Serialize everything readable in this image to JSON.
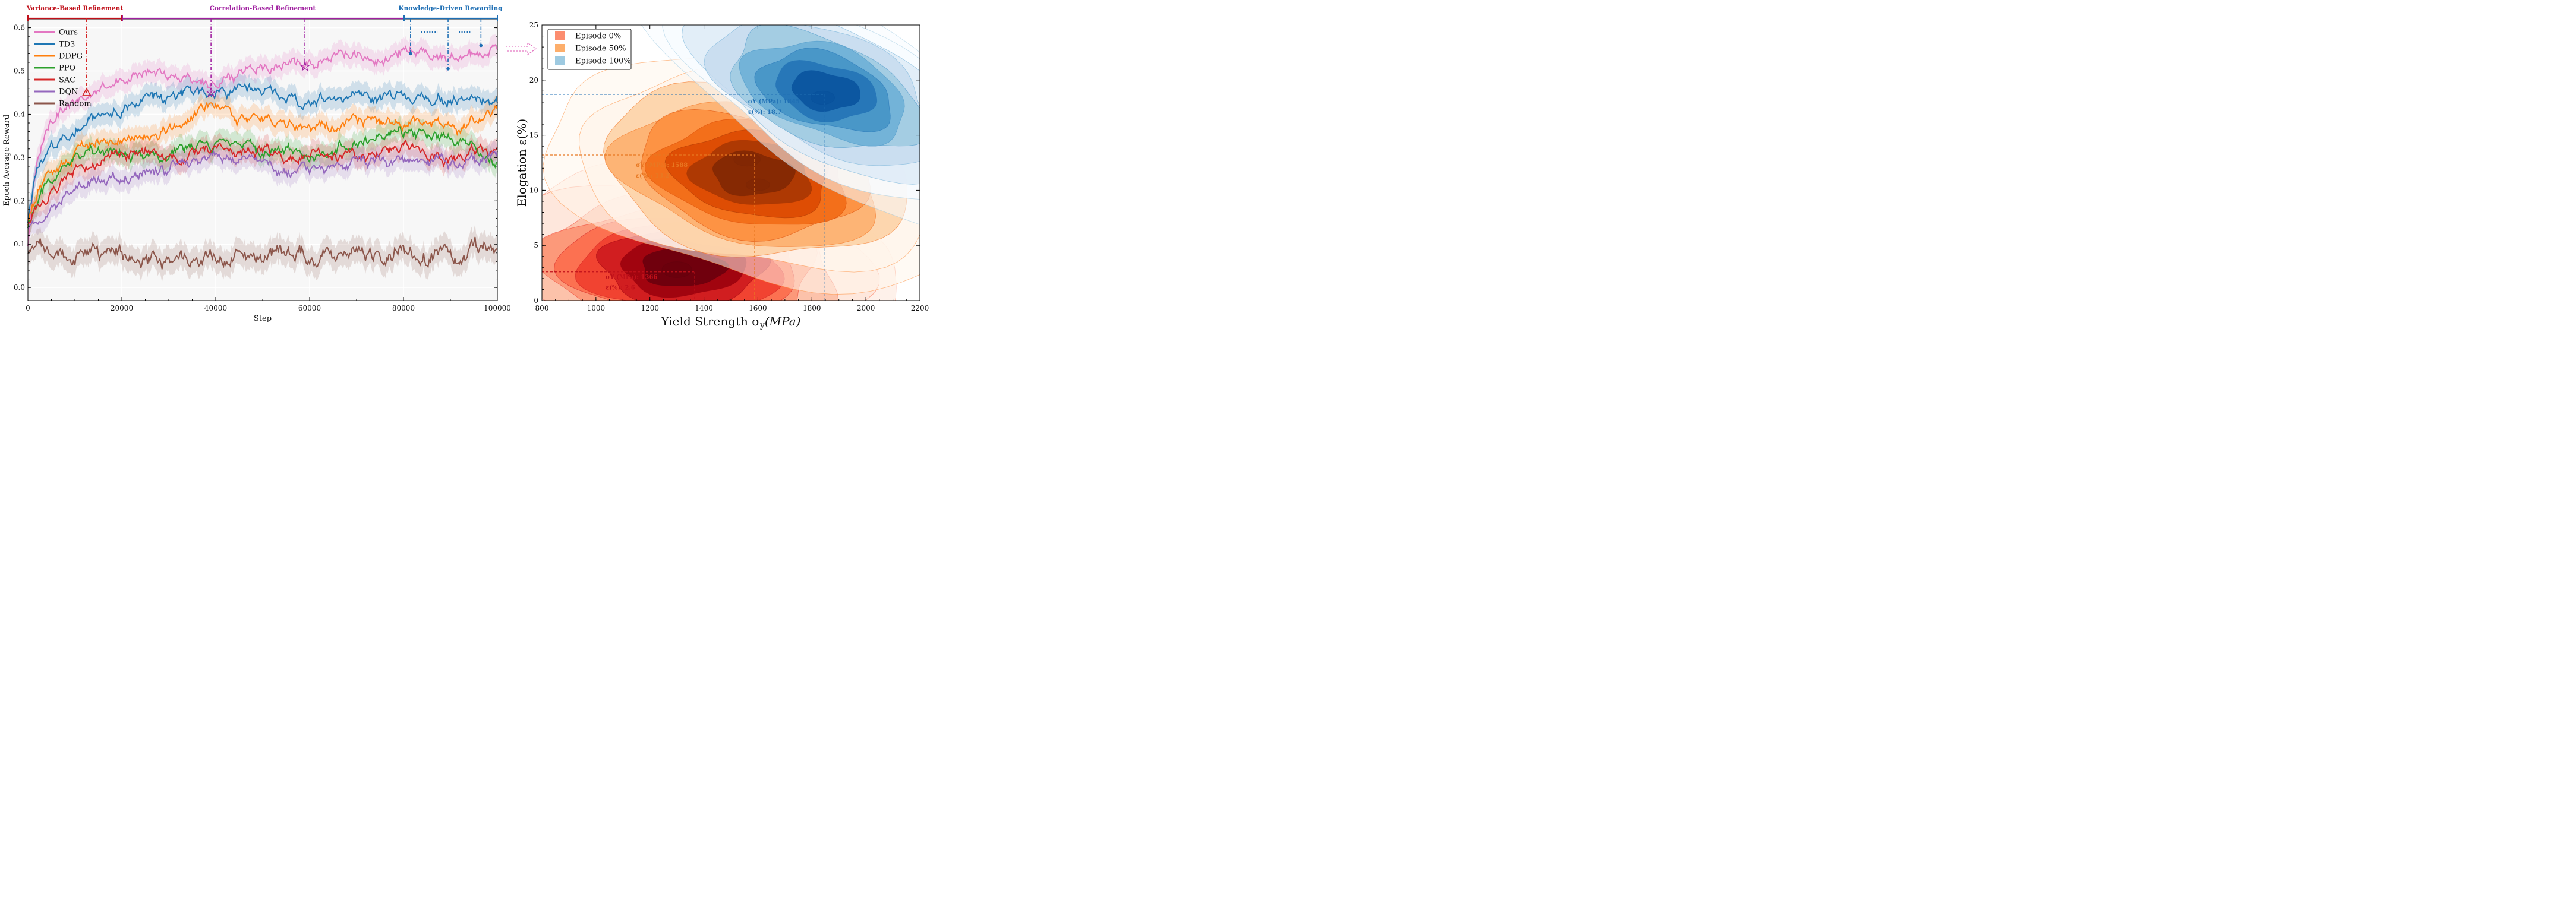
{
  "chart_data": [
    {
      "type": "line",
      "xlabel": "Step",
      "ylabel": "Epoch Average Reward",
      "xlim": [
        0,
        100000
      ],
      "ylim": [
        -0.03,
        0.62
      ],
      "xticks": [
        "0",
        "20000",
        "40000",
        "60000",
        "80000",
        "100000"
      ],
      "yticks": [
        "0.0",
        "0.1",
        "0.2",
        "0.3",
        "0.4",
        "0.5",
        "0.6"
      ],
      "grid": true,
      "legend_position": "top-left",
      "phases": [
        {
          "label": "Variance-Based Refinement",
          "x_start": 0,
          "x_end": 20000,
          "color": "#c0101a"
        },
        {
          "label": "Correlation-Based Refinement",
          "x_start": 20000,
          "x_end": 80000,
          "color": "#a020a0"
        },
        {
          "label": "Knowledge-Driven Rewarding",
          "x_start": 80000,
          "x_end": 100000,
          "color": "#1f6fb4"
        }
      ],
      "markers": [
        {
          "shape": "triangle",
          "x": 12500,
          "y": 0.45,
          "color": "#d62728"
        },
        {
          "shape": "star",
          "x": 39000,
          "y": 0.45,
          "color": "#a020a0"
        },
        {
          "shape": "star",
          "x": 59000,
          "y": 0.51,
          "color": "#a020a0"
        },
        {
          "shape": "dot",
          "x": 81500,
          "y": 0.54,
          "color": "#1f6fb4"
        },
        {
          "shape": "dot",
          "x": 89500,
          "y": 0.505,
          "color": "#1f6fb4"
        },
        {
          "shape": "dot",
          "x": 96500,
          "y": 0.559,
          "color": "#1f6fb4"
        }
      ],
      "x": [
        0,
        2000,
        5000,
        10000,
        15000,
        20000,
        25000,
        30000,
        35000,
        40000,
        45000,
        50000,
        55000,
        60000,
        65000,
        70000,
        75000,
        80000,
        85000,
        90000,
        95000,
        100000
      ],
      "series": [
        {
          "name": "Ours",
          "color": "#e377c2",
          "values": [
            0.1,
            0.3,
            0.4,
            0.42,
            0.46,
            0.48,
            0.5,
            0.49,
            0.48,
            0.47,
            0.5,
            0.51,
            0.52,
            0.52,
            0.54,
            0.53,
            0.52,
            0.55,
            0.54,
            0.53,
            0.54,
            0.55
          ]
        },
        {
          "name": "TD3",
          "color": "#1f77b4",
          "values": [
            0.15,
            0.27,
            0.32,
            0.37,
            0.4,
            0.41,
            0.43,
            0.44,
            0.45,
            0.45,
            0.46,
            0.45,
            0.44,
            0.42,
            0.44,
            0.44,
            0.43,
            0.45,
            0.44,
            0.43,
            0.43,
            0.43
          ]
        },
        {
          "name": "DDPG",
          "color": "#ff7f0e",
          "values": [
            0.15,
            0.22,
            0.26,
            0.3,
            0.33,
            0.34,
            0.36,
            0.37,
            0.39,
            0.42,
            0.4,
            0.39,
            0.38,
            0.36,
            0.37,
            0.38,
            0.39,
            0.38,
            0.39,
            0.37,
            0.38,
            0.4
          ]
        },
        {
          "name": "PPO",
          "color": "#2ca02c",
          "values": [
            0.14,
            0.2,
            0.25,
            0.29,
            0.32,
            0.31,
            0.3,
            0.31,
            0.32,
            0.33,
            0.32,
            0.31,
            0.32,
            0.31,
            0.32,
            0.33,
            0.35,
            0.36,
            0.35,
            0.34,
            0.32,
            0.29
          ]
        },
        {
          "name": "SAC",
          "color": "#d62728",
          "values": [
            0.14,
            0.18,
            0.22,
            0.27,
            0.29,
            0.3,
            0.31,
            0.3,
            0.31,
            0.32,
            0.31,
            0.32,
            0.3,
            0.3,
            0.31,
            0.3,
            0.31,
            0.32,
            0.31,
            0.3,
            0.31,
            0.32
          ]
        },
        {
          "name": "DQN",
          "color": "#9467bd",
          "values": [
            0.14,
            0.16,
            0.19,
            0.22,
            0.25,
            0.26,
            0.27,
            0.28,
            0.29,
            0.3,
            0.3,
            0.28,
            0.26,
            0.27,
            0.28,
            0.29,
            0.29,
            0.29,
            0.3,
            0.28,
            0.29,
            0.31
          ]
        },
        {
          "name": "Random",
          "color": "#8c564b",
          "values": [
            0.08,
            0.08,
            0.08,
            0.08,
            0.08,
            0.08,
            0.07,
            0.07,
            0.06,
            0.07,
            0.07,
            0.07,
            0.08,
            0.07,
            0.07,
            0.08,
            0.07,
            0.08,
            0.07,
            0.07,
            0.08,
            0.08
          ]
        }
      ]
    },
    {
      "type": "contour",
      "xlabel": "Yield Strength σ",
      "xlabel_sub": "y",
      "xlabel_unit": "(MPa)",
      "ylabel": "Elogation ε(%)",
      "xlim": [
        800,
        2200
      ],
      "ylim": [
        0,
        25
      ],
      "xticks": [
        "800",
        "1000",
        "1200",
        "1400",
        "1600",
        "1800",
        "2000",
        "2200"
      ],
      "yticks": [
        "0",
        "5",
        "10",
        "15",
        "20",
        "25"
      ],
      "legend_position": "top-left",
      "series": [
        {
          "name": "Episode 0%",
          "color": "#fc8d6f",
          "palette": [
            "#fee5d9",
            "#fcbba1",
            "#fc9272",
            "#fb6a4a",
            "#ef3b2c",
            "#cb181d",
            "#99000d",
            "#67000d"
          ],
          "centers": [
            {
              "x": 1320,
              "y": 3.0,
              "sx": 270,
              "sy": 3.0
            },
            {
              "x": 1300,
              "y": 2.8,
              "sx": 100,
              "sy": 1.2
            }
          ]
        },
        {
          "name": "Episode 50%",
          "color": "#fdae6b",
          "palette": [
            "#fff5eb",
            "#fdd0a2",
            "#fdae6b",
            "#fd8d3c",
            "#f16913",
            "#d94801",
            "#a63603",
            "#7f2704"
          ],
          "centers": [
            {
              "x": 1580,
              "y": 11.5,
              "sx": 260,
              "sy": 3.4
            },
            {
              "x": 1560,
              "y": 12.8,
              "sx": 90,
              "sy": 1.0
            },
            {
              "x": 1600,
              "y": 10.5,
              "sx": 80,
              "sy": 0.9
            }
          ]
        },
        {
          "name": "Episode 100%",
          "color": "#9ecae1",
          "palette": [
            "#f7fbff",
            "#deebf7",
            "#c6dbef",
            "#9ecae1",
            "#6baed6",
            "#4292c6",
            "#2171b5",
            "#08519c"
          ],
          "centers": [
            {
              "x": 1850,
              "y": 19.0,
              "sx": 220,
              "sy": 3.0
            },
            {
              "x": 1840,
              "y": 18.4,
              "sx": 80,
              "sy": 1.0
            }
          ]
        }
      ],
      "annotations": [
        {
          "label": "σY (MPa): 1366",
          "label2": "ε(%): 2.6",
          "color": "#c0101a",
          "x": 1366,
          "y": 2.6
        },
        {
          "label": "σY (MPa): 1588",
          "label2": "ε(%): 13.2",
          "color": "#e87822",
          "x": 1588,
          "y": 13.2
        },
        {
          "label": "σY (MPa): 1845",
          "label2": "ε(%):  18.7",
          "color": "#1f6fb4",
          "x": 1845,
          "y": 18.7
        }
      ]
    }
  ]
}
